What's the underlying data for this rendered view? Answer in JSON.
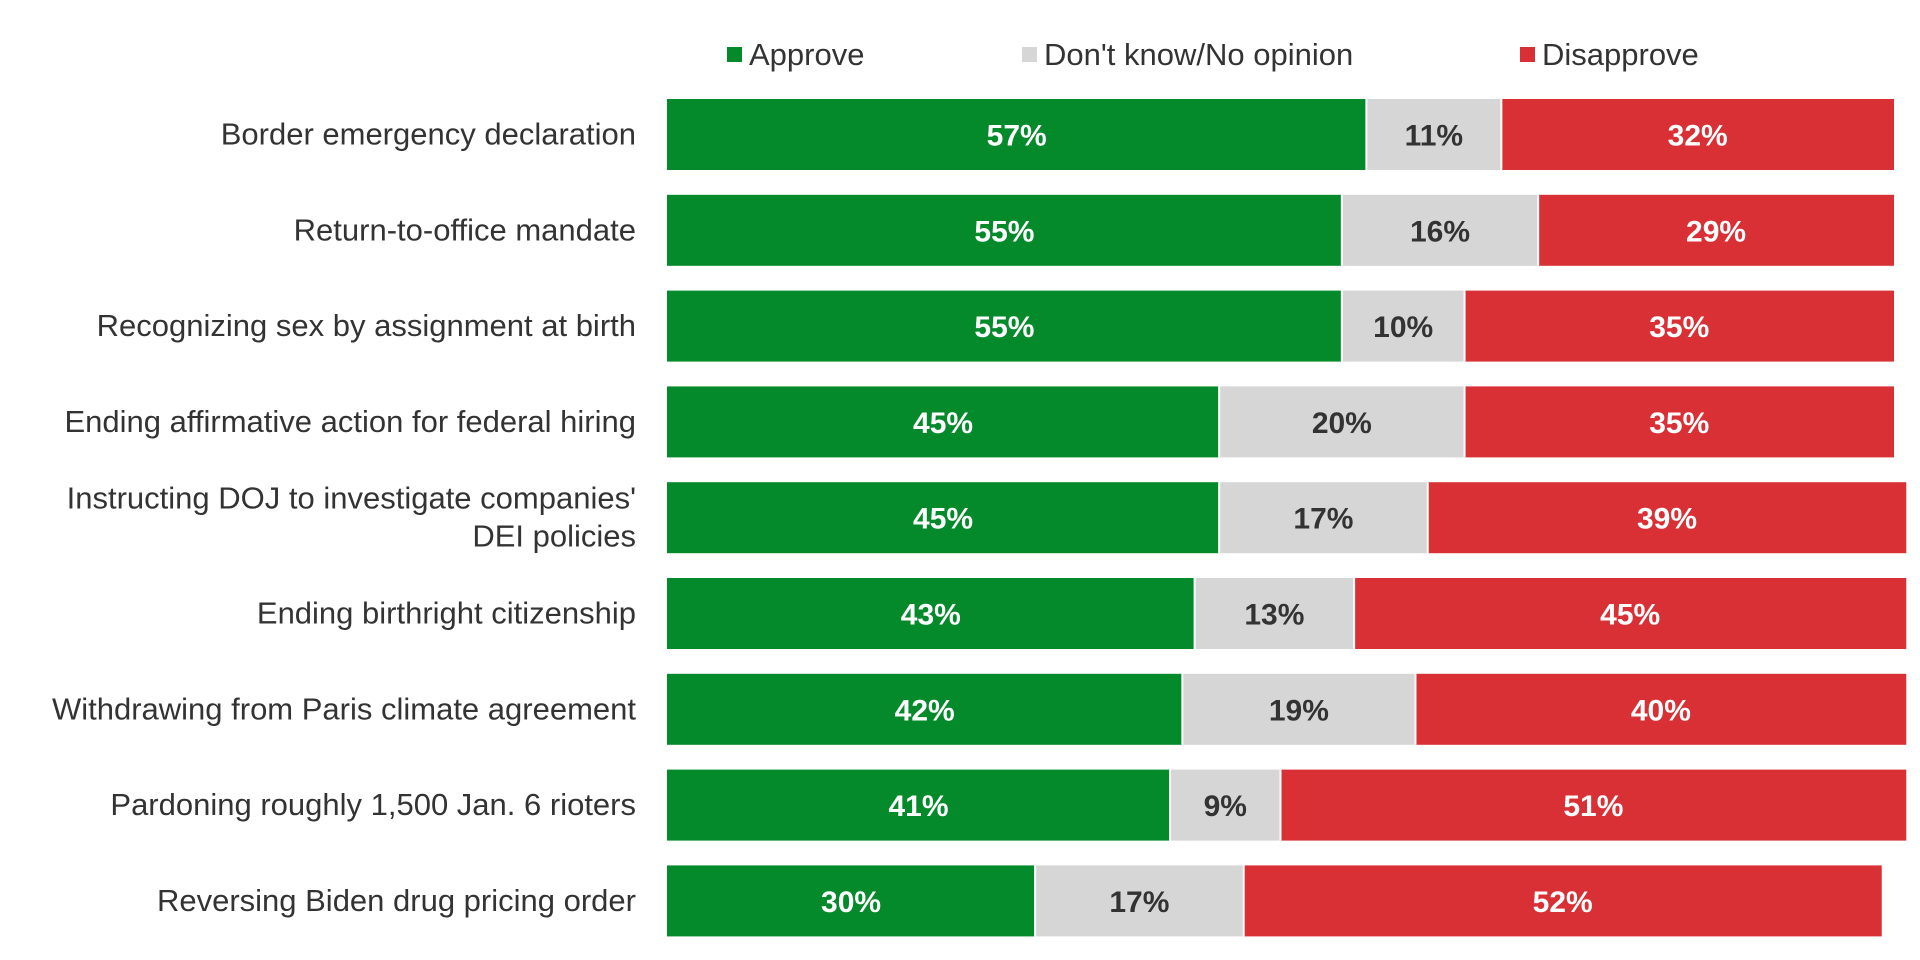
{
  "chart_data": {
    "type": "bar",
    "orientation": "horizontal",
    "stacked": true,
    "title": "",
    "xlabel": "",
    "ylabel": "",
    "xlim": [
      0,
      100
    ],
    "grid": false,
    "legend_position": "top",
    "categories": [
      [
        "Border emergency declaration"
      ],
      [
        "Return-to-office mandate"
      ],
      [
        "Recognizing sex by assignment at birth"
      ],
      [
        "Ending affirmative action for federal hiring"
      ],
      [
        "Instructing DOJ to investigate companies'",
        "DEI policies"
      ],
      [
        "Ending birthright citizenship"
      ],
      [
        "Withdrawing from Paris climate agreement"
      ],
      [
        "Pardoning roughly 1,500 Jan. 6 rioters"
      ],
      [
        "Reversing Biden drug pricing order"
      ]
    ],
    "series": [
      {
        "name": "Approve",
        "color": "#058a2b",
        "label_color": "#ffffff",
        "values": [
          57,
          55,
          55,
          45,
          45,
          43,
          42,
          41,
          30
        ],
        "labels": [
          "57%",
          "55%",
          "55%",
          "45%",
          "45%",
          "43%",
          "42%",
          "41%",
          "30%"
        ]
      },
      {
        "name": "Don't know/No opinion",
        "color": "#d6d6d6",
        "label_color": "#333333",
        "values": [
          11,
          16,
          10,
          20,
          17,
          13,
          19,
          9,
          17
        ],
        "labels": [
          "11%",
          "16%",
          "10%",
          "20%",
          "17%",
          "13%",
          "19%",
          "9%",
          "17%"
        ]
      },
      {
        "name": "Disapprove",
        "color": "#d93036",
        "label_color": "#ffffff",
        "values": [
          32,
          29,
          35,
          35,
          39,
          45,
          40,
          51,
          52
        ],
        "labels": [
          "32%",
          "29%",
          "35%",
          "35%",
          "39%",
          "45%",
          "40%",
          "51%",
          "52%"
        ]
      }
    ]
  }
}
